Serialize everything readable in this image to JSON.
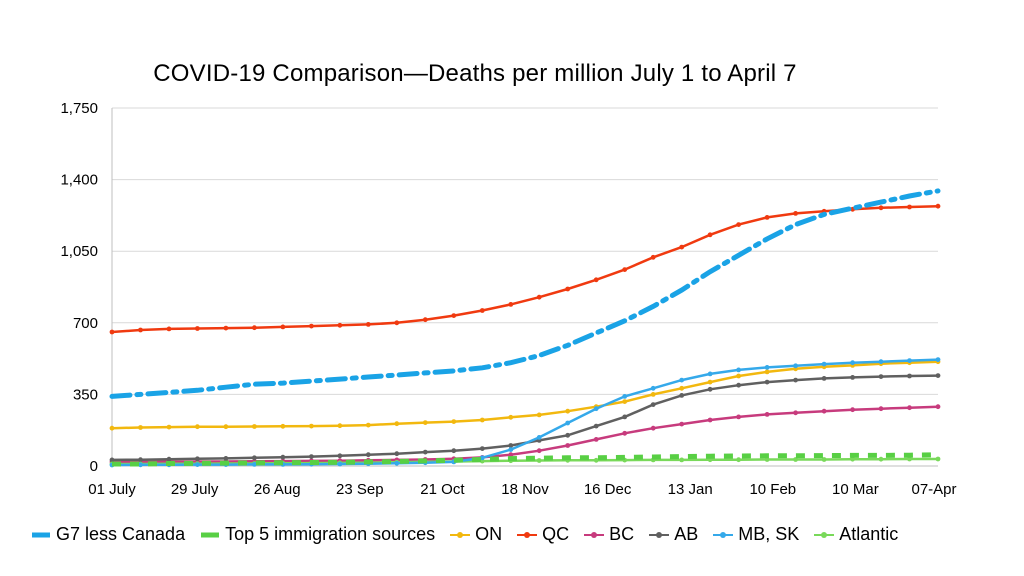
{
  "chart_data": {
    "type": "line",
    "title": "COVID-19 Comparison—Deaths per million July 1 to April 7",
    "xlabel": "",
    "ylabel": "",
    "ylim": [
      0,
      1750
    ],
    "yticks": [
      "0",
      "350",
      "700",
      "1,050",
      "1,400",
      "1,750"
    ],
    "ytick_values": [
      0,
      350,
      700,
      1050,
      1400,
      1750
    ],
    "x_tick_labels": [
      "01 July",
      "29 July",
      "26 Aug",
      "23 Sep",
      "21 Oct",
      "18 Nov",
      "16 Dec",
      "13 Jan",
      "10 Feb",
      "10 Mar",
      "07-Apr"
    ],
    "legend_position": "bottom",
    "grid": true,
    "series": [
      {
        "name": "G7 less Canada",
        "color": "#1aa3e6",
        "style": "dashdot-thick",
        "values": [
          340,
          350,
          360,
          370,
          385,
          400,
          405,
          415,
          425,
          435,
          445,
          455,
          465,
          480,
          505,
          540,
          590,
          650,
          710,
          780,
          860,
          950,
          1030,
          1110,
          1180,
          1230,
          1260,
          1290,
          1320,
          1345
        ]
      },
      {
        "name": "Top 5 immigration sources",
        "color": "#58cf44",
        "style": "dashed-thick",
        "values": [
          10,
          10,
          12,
          13,
          14,
          15,
          16,
          17,
          18,
          20,
          22,
          25,
          28,
          32,
          36,
          38,
          40,
          40,
          42,
          44,
          46,
          48,
          49,
          50,
          50,
          51,
          52,
          52,
          53,
          55
        ]
      },
      {
        "name": "ON",
        "color": "#f2b80f",
        "style": "line-dot",
        "values": [
          185,
          188,
          190,
          192,
          192,
          193,
          194,
          195,
          197,
          200,
          207,
          212,
          217,
          225,
          238,
          250,
          268,
          290,
          315,
          350,
          380,
          410,
          440,
          460,
          475,
          485,
          492,
          500,
          505,
          510
        ]
      },
      {
        "name": "QC",
        "color": "#f03a10",
        "style": "line-dot",
        "values": [
          655,
          665,
          670,
          672,
          674,
          676,
          680,
          684,
          688,
          692,
          700,
          715,
          735,
          760,
          790,
          825,
          865,
          910,
          960,
          1020,
          1070,
          1130,
          1180,
          1215,
          1235,
          1245,
          1255,
          1262,
          1266,
          1270
        ]
      },
      {
        "name": "BC",
        "color": "#c73b7d",
        "style": "line-dot",
        "values": [
          20,
          20,
          21,
          22,
          22,
          23,
          24,
          25,
          26,
          28,
          30,
          32,
          35,
          42,
          55,
          75,
          100,
          130,
          160,
          185,
          205,
          225,
          240,
          252,
          260,
          268,
          275,
          280,
          285,
          290
        ]
      },
      {
        "name": "AB",
        "color": "#606060",
        "style": "line-dot",
        "values": [
          30,
          31,
          33,
          35,
          37,
          40,
          43,
          46,
          50,
          55,
          60,
          68,
          75,
          85,
          100,
          125,
          150,
          195,
          240,
          300,
          345,
          375,
          395,
          410,
          420,
          428,
          433,
          437,
          440,
          442
        ]
      },
      {
        "name": "MB, SK",
        "color": "#35a9ea",
        "style": "line-dot",
        "values": [
          5,
          6,
          6,
          7,
          7,
          8,
          8,
          9,
          10,
          11,
          13,
          16,
          20,
          40,
          80,
          140,
          210,
          280,
          340,
          380,
          420,
          450,
          470,
          482,
          490,
          498,
          505,
          510,
          515,
          520
        ]
      },
      {
        "name": "Atlantic",
        "color": "#79d95a",
        "style": "line-dot",
        "values": [
          10,
          10,
          11,
          11,
          12,
          12,
          13,
          14,
          15,
          16,
          18,
          20,
          22,
          24,
          26,
          27,
          28,
          28,
          29,
          30,
          30,
          31,
          31,
          32,
          32,
          32,
          33,
          33,
          34,
          34
        ]
      }
    ]
  }
}
